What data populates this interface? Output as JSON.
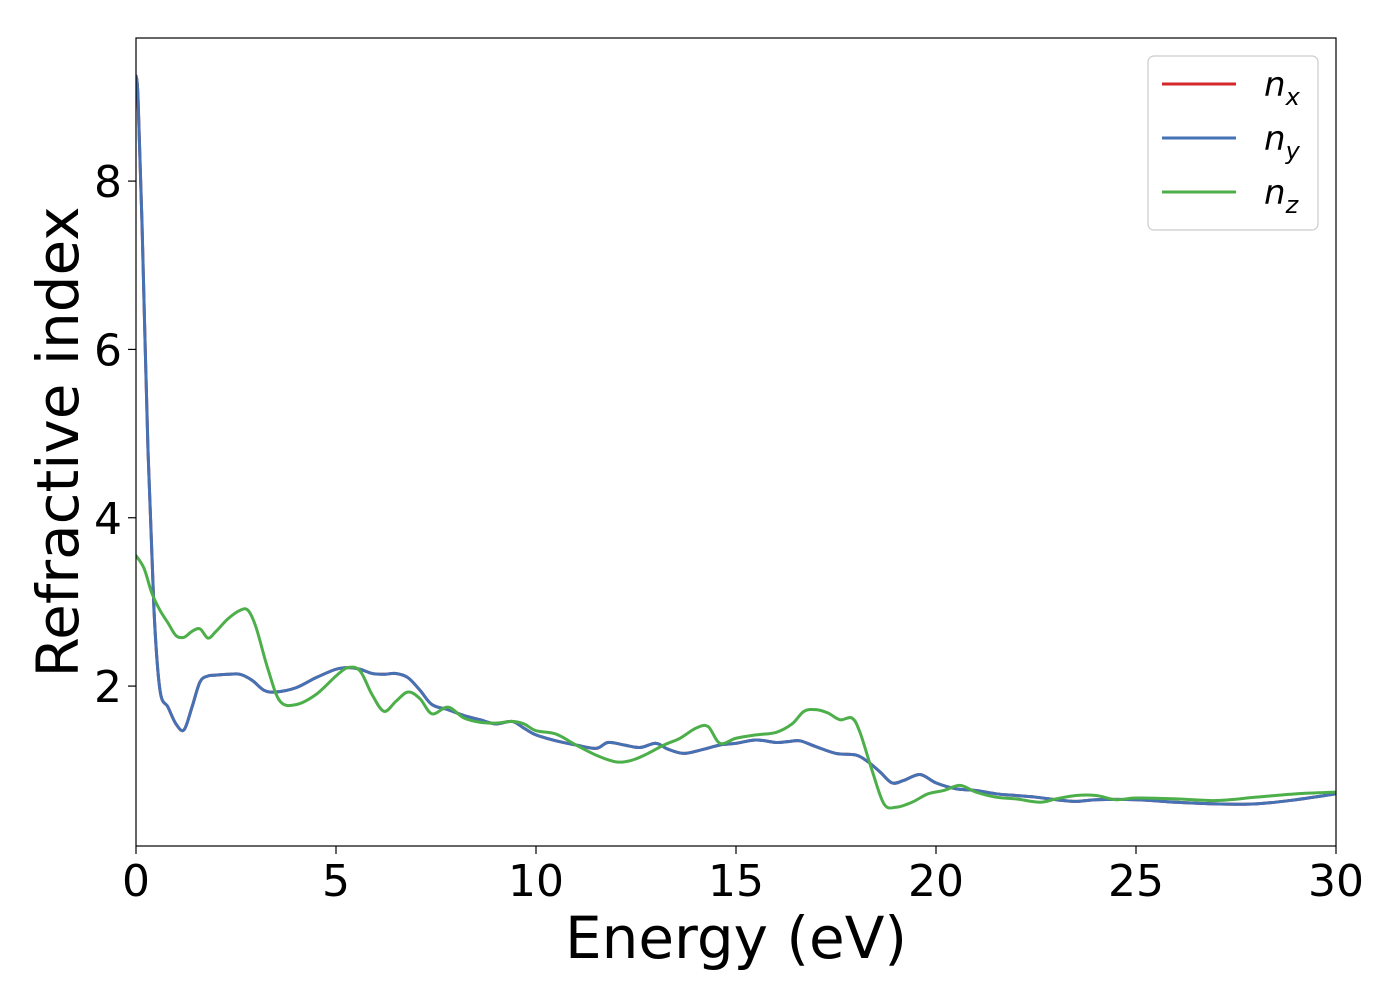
{
  "chart_data": {
    "type": "line",
    "title": "",
    "xlabel": "Energy (eV)",
    "ylabel": "Refractive index",
    "xlim": [
      0,
      30
    ],
    "ylim": [
      0.1,
      9.7
    ],
    "xticks": [
      0,
      5,
      10,
      15,
      20,
      25,
      30
    ],
    "yticks": [
      2,
      4,
      6,
      8
    ],
    "grid": false,
    "legend_position": "top-right",
    "series": [
      {
        "name": "n_x",
        "legend_base": "n",
        "legend_sub": "x",
        "color": "#d62728",
        "x": [
          0.0,
          0.05,
          0.15,
          0.3,
          0.45,
          0.6,
          0.8,
          1.0,
          1.2,
          1.4,
          1.6,
          1.8,
          2.0,
          2.3,
          2.6,
          2.9,
          3.2,
          3.5,
          4.0,
          4.5,
          5.0,
          5.3,
          5.6,
          5.9,
          6.2,
          6.5,
          6.8,
          7.1,
          7.4,
          7.8,
          8.2,
          8.6,
          9.0,
          9.4,
          9.7,
          10.0,
          10.5,
          11.0,
          11.5,
          11.8,
          12.2,
          12.6,
          13.0,
          13.3,
          13.7,
          14.2,
          14.6,
          15.0,
          15.5,
          16.0,
          16.3,
          16.6,
          17.0,
          17.5,
          18.0,
          18.3,
          18.6,
          18.9,
          19.2,
          19.6,
          20.0,
          20.5,
          21.0,
          21.5,
          22.0,
          22.5,
          23.0,
          23.5,
          24.0,
          25.0,
          26.0,
          27.0,
          28.0,
          29.0,
          30.0
        ],
        "values": [
          9.25,
          9.0,
          7.5,
          4.8,
          2.9,
          1.95,
          1.75,
          1.55,
          1.48,
          1.75,
          2.05,
          2.12,
          2.13,
          2.14,
          2.14,
          2.07,
          1.95,
          1.93,
          1.98,
          2.1,
          2.2,
          2.22,
          2.2,
          2.15,
          2.14,
          2.15,
          2.1,
          1.95,
          1.78,
          1.72,
          1.65,
          1.6,
          1.55,
          1.58,
          1.5,
          1.42,
          1.35,
          1.3,
          1.26,
          1.33,
          1.3,
          1.27,
          1.32,
          1.25,
          1.2,
          1.25,
          1.3,
          1.32,
          1.36,
          1.33,
          1.34,
          1.35,
          1.28,
          1.2,
          1.18,
          1.1,
          0.98,
          0.85,
          0.88,
          0.95,
          0.85,
          0.78,
          0.76,
          0.72,
          0.7,
          0.68,
          0.65,
          0.63,
          0.65,
          0.65,
          0.62,
          0.6,
          0.6,
          0.65,
          0.72
        ]
      },
      {
        "name": "n_y",
        "legend_base": "n",
        "legend_sub": "y",
        "color": "#4472b4",
        "x": [
          0.0,
          0.05,
          0.15,
          0.3,
          0.45,
          0.6,
          0.8,
          1.0,
          1.2,
          1.4,
          1.6,
          1.8,
          2.0,
          2.3,
          2.6,
          2.9,
          3.2,
          3.5,
          4.0,
          4.5,
          5.0,
          5.3,
          5.6,
          5.9,
          6.2,
          6.5,
          6.8,
          7.1,
          7.4,
          7.8,
          8.2,
          8.6,
          9.0,
          9.4,
          9.7,
          10.0,
          10.5,
          11.0,
          11.5,
          11.8,
          12.2,
          12.6,
          13.0,
          13.3,
          13.7,
          14.2,
          14.6,
          15.0,
          15.5,
          16.0,
          16.3,
          16.6,
          17.0,
          17.5,
          18.0,
          18.3,
          18.6,
          18.9,
          19.2,
          19.6,
          20.0,
          20.5,
          21.0,
          21.5,
          22.0,
          22.5,
          23.0,
          23.5,
          24.0,
          25.0,
          26.0,
          27.0,
          28.0,
          29.0,
          30.0
        ],
        "values": [
          9.25,
          9.0,
          7.5,
          4.8,
          2.9,
          1.95,
          1.75,
          1.55,
          1.48,
          1.75,
          2.05,
          2.12,
          2.13,
          2.14,
          2.14,
          2.07,
          1.95,
          1.93,
          1.98,
          2.1,
          2.2,
          2.22,
          2.2,
          2.15,
          2.14,
          2.15,
          2.1,
          1.95,
          1.78,
          1.72,
          1.65,
          1.6,
          1.55,
          1.58,
          1.5,
          1.42,
          1.35,
          1.3,
          1.26,
          1.33,
          1.3,
          1.27,
          1.32,
          1.25,
          1.2,
          1.25,
          1.3,
          1.32,
          1.36,
          1.33,
          1.34,
          1.35,
          1.28,
          1.2,
          1.18,
          1.1,
          0.98,
          0.85,
          0.88,
          0.95,
          0.85,
          0.78,
          0.76,
          0.72,
          0.7,
          0.68,
          0.65,
          0.63,
          0.65,
          0.65,
          0.62,
          0.6,
          0.6,
          0.65,
          0.72
        ]
      },
      {
        "name": "n_z",
        "legend_base": "n",
        "legend_sub": "z",
        "color": "#4daf4a",
        "x": [
          0.0,
          0.2,
          0.4,
          0.6,
          0.8,
          1.0,
          1.2,
          1.4,
          1.6,
          1.8,
          2.0,
          2.3,
          2.6,
          2.8,
          3.0,
          3.3,
          3.6,
          4.0,
          4.5,
          5.0,
          5.3,
          5.6,
          5.9,
          6.2,
          6.5,
          6.8,
          7.1,
          7.4,
          7.8,
          8.2,
          8.6,
          9.0,
          9.4,
          9.7,
          10.0,
          10.5,
          11.0,
          11.5,
          12.0,
          12.4,
          12.8,
          13.2,
          13.6,
          14.0,
          14.3,
          14.6,
          15.0,
          15.5,
          16.0,
          16.4,
          16.7,
          17.0,
          17.3,
          17.6,
          17.9,
          18.1,
          18.4,
          18.7,
          19.0,
          19.4,
          19.8,
          20.2,
          20.6,
          21.0,
          21.5,
          22.0,
          22.6,
          23.0,
          23.5,
          24.0,
          24.5,
          25.0,
          26.0,
          27.0,
          28.0,
          29.0,
          30.0
        ],
        "values": [
          3.55,
          3.4,
          3.1,
          2.9,
          2.75,
          2.6,
          2.58,
          2.65,
          2.68,
          2.57,
          2.65,
          2.8,
          2.9,
          2.9,
          2.7,
          2.2,
          1.82,
          1.78,
          1.9,
          2.12,
          2.22,
          2.18,
          1.9,
          1.7,
          1.82,
          1.93,
          1.85,
          1.67,
          1.75,
          1.62,
          1.57,
          1.56,
          1.58,
          1.55,
          1.47,
          1.43,
          1.3,
          1.18,
          1.1,
          1.12,
          1.2,
          1.3,
          1.38,
          1.5,
          1.52,
          1.32,
          1.38,
          1.42,
          1.45,
          1.55,
          1.7,
          1.72,
          1.68,
          1.6,
          1.62,
          1.45,
          1.0,
          0.6,
          0.56,
          0.62,
          0.72,
          0.76,
          0.82,
          0.74,
          0.68,
          0.66,
          0.62,
          0.66,
          0.7,
          0.7,
          0.65,
          0.67,
          0.66,
          0.64,
          0.68,
          0.72,
          0.74
        ]
      }
    ]
  }
}
